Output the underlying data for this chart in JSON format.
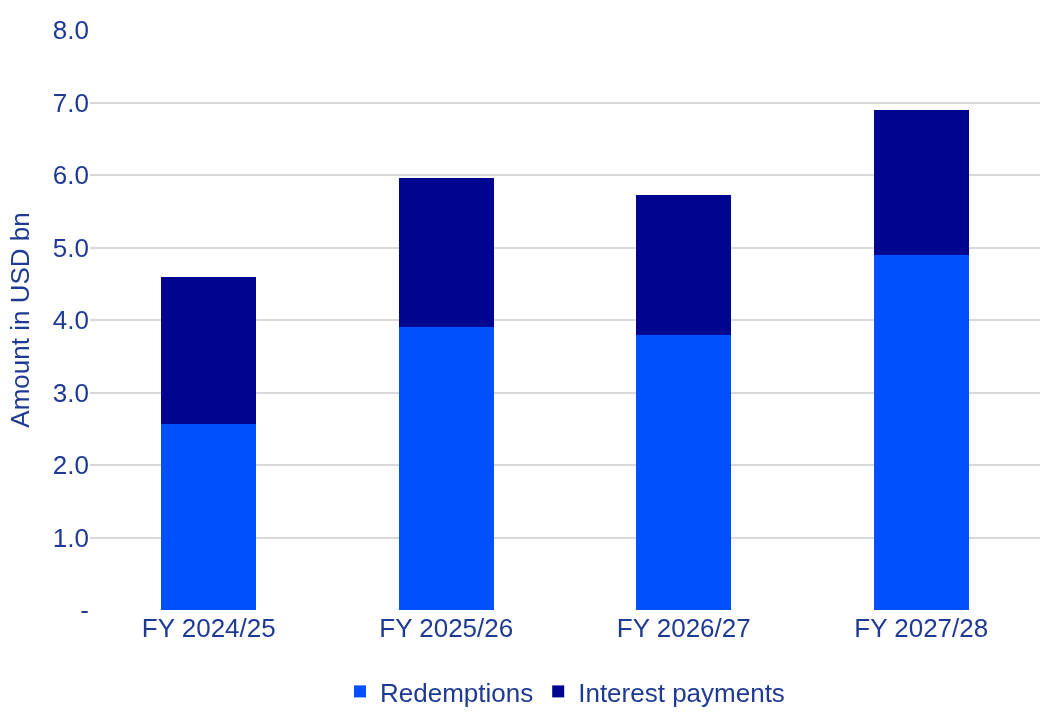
{
  "chart_data": {
    "type": "bar",
    "stacked": true,
    "ylabel": "Amount in USD bn",
    "categories": [
      "FY 2024/25",
      "FY 2025/26",
      "FY 2026/27",
      "FY 2027/28"
    ],
    "series": [
      {
        "name": "Redemptions",
        "color": "#0050ff",
        "values": [
          2.56,
          3.9,
          3.79,
          4.89
        ]
      },
      {
        "name": "Interest payments",
        "color": "#00058f",
        "values": [
          2.04,
          2.06,
          1.93,
          2.0
        ]
      }
    ],
    "ylim": [
      0,
      8
    ],
    "yticks": [
      {
        "value": 0,
        "label": "-"
      },
      {
        "value": 1,
        "label": "1.0"
      },
      {
        "value": 2,
        "label": "2.0"
      },
      {
        "value": 3,
        "label": "3.0"
      },
      {
        "value": 4,
        "label": "4.0"
      },
      {
        "value": 5,
        "label": "5.0"
      },
      {
        "value": 6,
        "label": "6.0"
      },
      {
        "value": 7,
        "label": "7.0"
      },
      {
        "value": 8,
        "label": "8.0"
      }
    ],
    "grid": "y",
    "legend": "bottom"
  }
}
